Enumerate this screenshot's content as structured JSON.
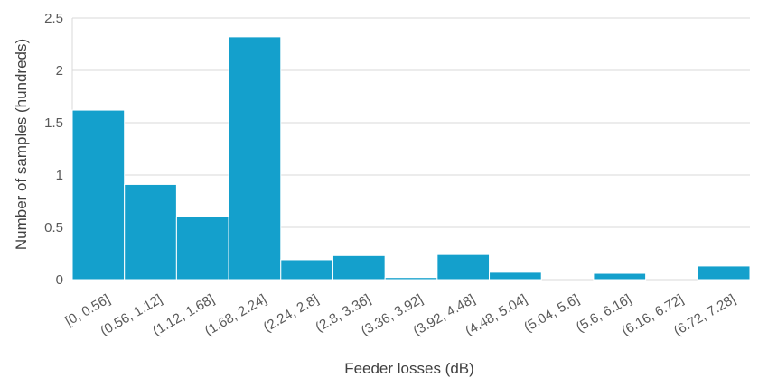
{
  "chart_data": {
    "type": "bar",
    "categories": [
      "[0, 0.56]",
      "(0.56, 1.12]",
      "(1.12, 1.68]",
      "(1.68, 2.24]",
      "(2.24, 2.8]",
      "(2.8, 3.36]",
      "(3.36, 3.92]",
      "(3.92, 4.48]",
      "(4.48, 5.04]",
      "(5.04, 5.6]",
      "(5.6, 6.16]",
      "(6.16, 6.72]",
      "(6.72, 7.28]"
    ],
    "values": [
      1.62,
      0.91,
      0.6,
      2.32,
      0.19,
      0.23,
      0.02,
      0.24,
      0.07,
      0.0,
      0.06,
      0.0,
      0.13
    ],
    "title": "",
    "xlabel": "Feeder losses (dB)",
    "ylabel": "Number of samples (hundreds)",
    "ylim": [
      0,
      2.5
    ],
    "yticks": [
      "0",
      "0.5",
      "1",
      "1.5",
      "2",
      "2.5"
    ],
    "grid": true,
    "bar_color": "#14a0cc"
  }
}
